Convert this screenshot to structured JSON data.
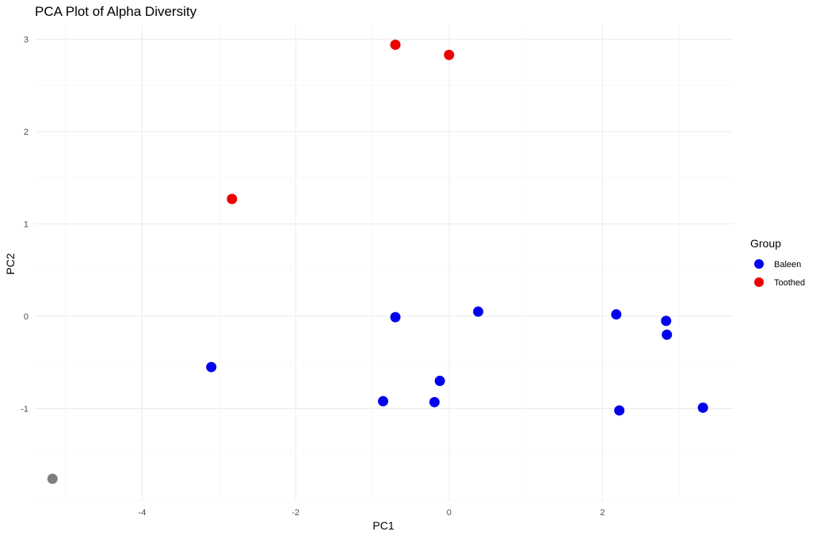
{
  "chart_data": {
    "type": "scatter",
    "title": "PCA Plot of Alpha Diversity",
    "xlabel": "PC1",
    "ylabel": "PC2",
    "xlim": [
      -5.4,
      3.7
    ],
    "ylim": [
      -2.0,
      3.15
    ],
    "x_ticks": [
      -4,
      -2,
      0,
      2
    ],
    "y_ticks": [
      -1,
      0,
      1,
      2,
      3
    ],
    "grid": true,
    "legend": {
      "title": "Group",
      "placement": "right",
      "entries": [
        {
          "label": "Baleen",
          "color": "#0000ee"
        },
        {
          "label": "Toothed",
          "color": "#ee0000"
        }
      ]
    },
    "series": [
      {
        "name": "Baleen",
        "color": "#0000ee",
        "points": [
          {
            "x": -3.1,
            "y": -0.55
          },
          {
            "x": -0.7,
            "y": -0.01
          },
          {
            "x": 0.38,
            "y": 0.05
          },
          {
            "x": 2.18,
            "y": 0.02
          },
          {
            "x": 2.83,
            "y": -0.05
          },
          {
            "x": 2.84,
            "y": -0.2
          },
          {
            "x": -0.86,
            "y": -0.92
          },
          {
            "x": -0.19,
            "y": -0.93
          },
          {
            "x": -0.12,
            "y": -0.7
          },
          {
            "x": 2.22,
            "y": -1.02
          },
          {
            "x": 3.31,
            "y": -0.99
          }
        ]
      },
      {
        "name": "Toothed",
        "color": "#ee0000",
        "points": [
          {
            "x": -0.7,
            "y": 2.94
          },
          {
            "x": 0.0,
            "y": 2.83
          },
          {
            "x": -2.83,
            "y": 1.27
          }
        ]
      },
      {
        "color": "#7f7f7f",
        "points": [
          {
            "x": -5.17,
            "y": -1.76
          }
        ]
      }
    ]
  }
}
